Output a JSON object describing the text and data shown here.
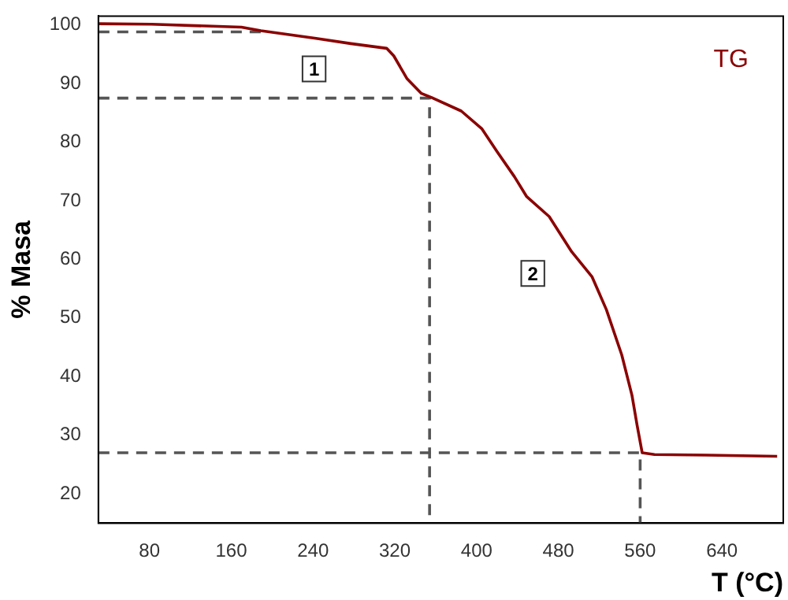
{
  "chart_data": {
    "type": "line",
    "xlabel": "T (°C)",
    "ylabel": "% Masa",
    "xlim": [
      30,
      700
    ],
    "xticks": [
      80,
      160,
      240,
      320,
      400,
      480,
      560,
      640
    ],
    "ylim": [
      15,
      101.5
    ],
    "yticks": [
      20,
      30,
      40,
      50,
      60,
      70,
      80,
      90,
      100
    ],
    "grid": false,
    "legend": false,
    "marker": "none",
    "line_style": "solid",
    "series": [
      {
        "color": "#8b0000",
        "x": [
          30,
          82,
          136,
          170,
          189,
          243,
          277,
          312,
          319,
          332,
          346,
          356,
          385,
          405,
          420,
          437,
          449,
          471,
          493,
          513,
          527,
          542,
          552,
          557,
          562,
          574,
          625,
          694
        ],
        "values": [
          100.2,
          100.1,
          99.8,
          99.6,
          99.0,
          97.7,
          96.8,
          96.0,
          94.7,
          90.8,
          88.3,
          87.6,
          85.3,
          82.3,
          78.4,
          74.1,
          70.7,
          67.3,
          61.3,
          57.0,
          51.4,
          43.7,
          36.8,
          31.7,
          27.0,
          26.7,
          26.6,
          26.4
        ]
      },
      {
        "color": "#555555",
        "line_style": "dashed",
        "x": [
          30,
          192
        ],
        "values": [
          98.8,
          98.8
        ]
      },
      {
        "color": "#555555",
        "line_style": "dashed",
        "x": [
          30,
          354,
          354
        ],
        "values": [
          87.5,
          87.5,
          15
        ]
      },
      {
        "color": "#555555",
        "line_style": "dashed",
        "x": [
          30,
          560,
          560
        ],
        "values": [
          27,
          27,
          15
        ]
      }
    ],
    "annotations": [
      "TG",
      {
        "text": "1",
        "x": 241,
        "y": 92.5
      },
      {
        "text": "2",
        "x": 455,
        "y": 57.6
      }
    ]
  }
}
